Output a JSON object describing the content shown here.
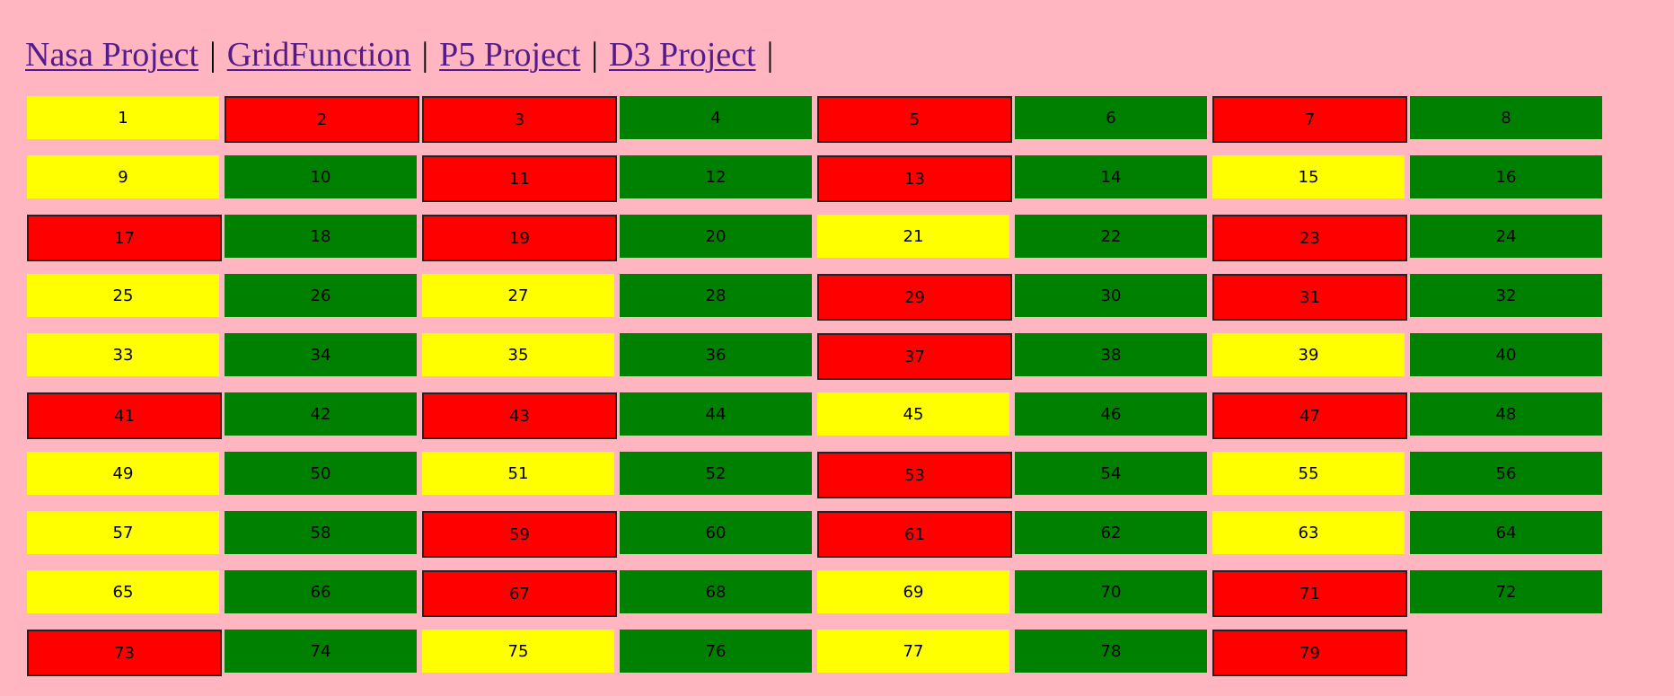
{
  "nav": {
    "links": [
      {
        "label": "Nasa Project",
        "name": "nav-link-nasa-project"
      },
      {
        "label": "GridFunction",
        "name": "nav-link-gridfunction"
      },
      {
        "label": "P5 Project",
        "name": "nav-link-p5-project"
      },
      {
        "label": "D3 Project",
        "name": "nav-link-d3-project"
      }
    ],
    "separator": "|"
  },
  "colors": {
    "background": "#ffb6c1",
    "link": "#551a8b",
    "green": "#008000",
    "yellow": "#ffff00",
    "red": "#ff0000",
    "red_border": "#222222"
  },
  "grid": {
    "columns": 8,
    "cells": [
      {
        "label": "1",
        "color": "yellow"
      },
      {
        "label": "2",
        "color": "red"
      },
      {
        "label": "3",
        "color": "red"
      },
      {
        "label": "4",
        "color": "green"
      },
      {
        "label": "5",
        "color": "red"
      },
      {
        "label": "6",
        "color": "green"
      },
      {
        "label": "7",
        "color": "red"
      },
      {
        "label": "8",
        "color": "green"
      },
      {
        "label": "9",
        "color": "yellow"
      },
      {
        "label": "10",
        "color": "green"
      },
      {
        "label": "11",
        "color": "red"
      },
      {
        "label": "12",
        "color": "green"
      },
      {
        "label": "13",
        "color": "red"
      },
      {
        "label": "14",
        "color": "green"
      },
      {
        "label": "15",
        "color": "yellow"
      },
      {
        "label": "16",
        "color": "green"
      },
      {
        "label": "17",
        "color": "red"
      },
      {
        "label": "18",
        "color": "green"
      },
      {
        "label": "19",
        "color": "red"
      },
      {
        "label": "20",
        "color": "green"
      },
      {
        "label": "21",
        "color": "yellow"
      },
      {
        "label": "22",
        "color": "green"
      },
      {
        "label": "23",
        "color": "red"
      },
      {
        "label": "24",
        "color": "green"
      },
      {
        "label": "25",
        "color": "yellow"
      },
      {
        "label": "26",
        "color": "green"
      },
      {
        "label": "27",
        "color": "yellow"
      },
      {
        "label": "28",
        "color": "green"
      },
      {
        "label": "29",
        "color": "red"
      },
      {
        "label": "30",
        "color": "green"
      },
      {
        "label": "31",
        "color": "red"
      },
      {
        "label": "32",
        "color": "green"
      },
      {
        "label": "33",
        "color": "yellow"
      },
      {
        "label": "34",
        "color": "green"
      },
      {
        "label": "35",
        "color": "yellow"
      },
      {
        "label": "36",
        "color": "green"
      },
      {
        "label": "37",
        "color": "red"
      },
      {
        "label": "38",
        "color": "green"
      },
      {
        "label": "39",
        "color": "yellow"
      },
      {
        "label": "40",
        "color": "green"
      },
      {
        "label": "41",
        "color": "red"
      },
      {
        "label": "42",
        "color": "green"
      },
      {
        "label": "43",
        "color": "red"
      },
      {
        "label": "44",
        "color": "green"
      },
      {
        "label": "45",
        "color": "yellow"
      },
      {
        "label": "46",
        "color": "green"
      },
      {
        "label": "47",
        "color": "red"
      },
      {
        "label": "48",
        "color": "green"
      },
      {
        "label": "49",
        "color": "yellow"
      },
      {
        "label": "50",
        "color": "green"
      },
      {
        "label": "51",
        "color": "yellow"
      },
      {
        "label": "52",
        "color": "green"
      },
      {
        "label": "53",
        "color": "red"
      },
      {
        "label": "54",
        "color": "green"
      },
      {
        "label": "55",
        "color": "yellow"
      },
      {
        "label": "56",
        "color": "green"
      },
      {
        "label": "57",
        "color": "yellow"
      },
      {
        "label": "58",
        "color": "green"
      },
      {
        "label": "59",
        "color": "red"
      },
      {
        "label": "60",
        "color": "green"
      },
      {
        "label": "61",
        "color": "red"
      },
      {
        "label": "62",
        "color": "green"
      },
      {
        "label": "63",
        "color": "yellow"
      },
      {
        "label": "64",
        "color": "green"
      },
      {
        "label": "65",
        "color": "yellow"
      },
      {
        "label": "66",
        "color": "green"
      },
      {
        "label": "67",
        "color": "red"
      },
      {
        "label": "68",
        "color": "green"
      },
      {
        "label": "69",
        "color": "yellow"
      },
      {
        "label": "70",
        "color": "green"
      },
      {
        "label": "71",
        "color": "red"
      },
      {
        "label": "72",
        "color": "green"
      },
      {
        "label": "73",
        "color": "red"
      },
      {
        "label": "74",
        "color": "green"
      },
      {
        "label": "75",
        "color": "yellow"
      },
      {
        "label": "76",
        "color": "green"
      },
      {
        "label": "77",
        "color": "yellow"
      },
      {
        "label": "78",
        "color": "green"
      },
      {
        "label": "79",
        "color": "red"
      }
    ]
  }
}
